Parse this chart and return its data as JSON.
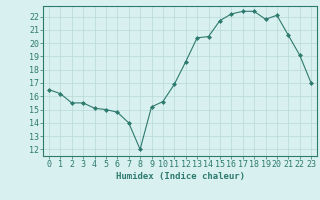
{
  "x": [
    0,
    1,
    2,
    3,
    4,
    5,
    6,
    7,
    8,
    9,
    10,
    11,
    12,
    13,
    14,
    15,
    16,
    17,
    18,
    19,
    20,
    21,
    22,
    23
  ],
  "y": [
    16.5,
    16.2,
    15.5,
    15.5,
    15.1,
    15.0,
    14.8,
    14.0,
    12.0,
    15.2,
    15.6,
    16.9,
    18.6,
    20.4,
    20.5,
    21.7,
    22.2,
    22.4,
    22.4,
    21.8,
    22.1,
    20.6,
    19.1,
    17.0
  ],
  "line_color": "#2d7a6e",
  "marker": "D",
  "marker_size": 2.0,
  "background_color": "#d9f0f0",
  "grid_color": "#b8d8d8",
  "xlabel": "Humidex (Indice chaleur)",
  "xlim": [
    -0.5,
    23.5
  ],
  "ylim": [
    11.5,
    22.8
  ],
  "yticks": [
    12,
    13,
    14,
    15,
    16,
    17,
    18,
    19,
    20,
    21,
    22
  ],
  "xticks": [
    0,
    1,
    2,
    3,
    4,
    5,
    6,
    7,
    8,
    9,
    10,
    11,
    12,
    13,
    14,
    15,
    16,
    17,
    18,
    19,
    20,
    21,
    22,
    23
  ],
  "tick_color": "#2d7a6e",
  "label_color": "#2d7a6e",
  "spine_color": "#2d7a6e",
  "font_size": 6.0,
  "xlabel_fontsize": 6.5,
  "linewidth": 0.8
}
